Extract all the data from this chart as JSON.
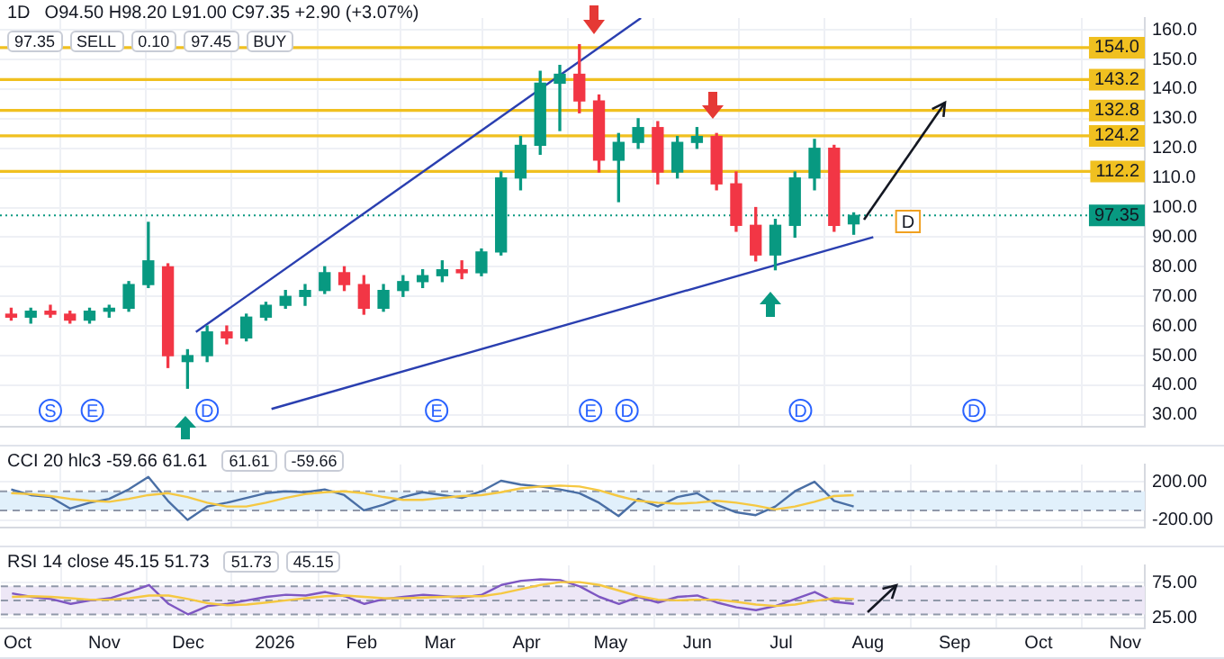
{
  "chart_data": [
    {
      "type": "candlestick",
      "title": "1D",
      "subtitle": "O94.50 H98.20 L91.00 C97.35 +2.90 (+3.07%)",
      "x": [
        "2025-09-29",
        "2025-10-06",
        "2025-10-13",
        "2025-10-20",
        "2025-10-27",
        "2025-11-03",
        "2025-11-10",
        "2025-11-17",
        "2025-11-24",
        "2025-12-01",
        "2025-12-08",
        "2025-12-15",
        "2025-12-22",
        "2025-12-29",
        "2026-01-05",
        "2026-01-12",
        "2026-01-19",
        "2026-01-26",
        "2026-02-02",
        "2026-02-09",
        "2026-02-16",
        "2026-02-23",
        "2026-03-02",
        "2026-03-09",
        "2026-03-16",
        "2026-03-23",
        "2026-03-30",
        "2026-04-06",
        "2026-04-13",
        "2026-04-20",
        "2026-04-27",
        "2026-05-04",
        "2026-05-11",
        "2026-05-18",
        "2026-05-25",
        "2026-06-01",
        "2026-06-08",
        "2026-06-15",
        "2026-06-22",
        "2026-06-29",
        "2026-07-06",
        "2026-07-13",
        "2026-07-20",
        "2026-07-27"
      ],
      "ohlc": [
        [
          64,
          66,
          62,
          63
        ],
        [
          63,
          66,
          61,
          65
        ],
        [
          65,
          67,
          63,
          64
        ],
        [
          64,
          65,
          61,
          62
        ],
        [
          62,
          66,
          61,
          65
        ],
        [
          65,
          67,
          63,
          66
        ],
        [
          66,
          75,
          65,
          74
        ],
        [
          74,
          95,
          73,
          82
        ],
        [
          80,
          81,
          46,
          50
        ],
        [
          48,
          52,
          39,
          50
        ],
        [
          50,
          60,
          48,
          58
        ],
        [
          58,
          60,
          54,
          56
        ],
        [
          56,
          64,
          55,
          63
        ],
        [
          63,
          68,
          62,
          67
        ],
        [
          67,
          72,
          66,
          70
        ],
        [
          70,
          74,
          67,
          72
        ],
        [
          72,
          80,
          71,
          78
        ],
        [
          78,
          80,
          72,
          74
        ],
        [
          74,
          77,
          64,
          66
        ],
        [
          66,
          74,
          65,
          72
        ],
        [
          72,
          77,
          70,
          75
        ],
        [
          75,
          79,
          73,
          77
        ],
        [
          77,
          82,
          75,
          79
        ],
        [
          79,
          82,
          76,
          78
        ],
        [
          78,
          86,
          77,
          85
        ],
        [
          85,
          112,
          84,
          110
        ],
        [
          110,
          124,
          106,
          121
        ],
        [
          121,
          146,
          118,
          142
        ],
        [
          142,
          148,
          126,
          145
        ],
        [
          145,
          155,
          132,
          136
        ],
        [
          136,
          138,
          112,
          116
        ],
        [
          116,
          125,
          102,
          122
        ],
        [
          122,
          130,
          120,
          127
        ],
        [
          127,
          129,
          108,
          112
        ],
        [
          112,
          124,
          110,
          122
        ],
        [
          122,
          127,
          120,
          124
        ],
        [
          124,
          125,
          106,
          108
        ],
        [
          108,
          112,
          92,
          94
        ],
        [
          94,
          100,
          82,
          84
        ],
        [
          84,
          96,
          79,
          94
        ],
        [
          94,
          112,
          90,
          110
        ],
        [
          110,
          123,
          106,
          120
        ],
        [
          120,
          121,
          92,
          94
        ],
        [
          94.5,
          98.2,
          91,
          97.35
        ]
      ],
      "colors": [
        "#f23645",
        "#089981",
        "#f23645",
        "#f23645",
        "#089981",
        "#089981",
        "#089981",
        "#089981",
        "#f23645",
        "#089981",
        "#089981",
        "#f23645",
        "#089981",
        "#089981",
        "#089981",
        "#089981",
        "#089981",
        "#f23645",
        "#f23645",
        "#089981",
        "#089981",
        "#089981",
        "#089981",
        "#f23645",
        "#089981",
        "#089981",
        "#089981",
        "#089981",
        "#089981",
        "#f23645",
        "#f23645",
        "#089981",
        "#089981",
        "#f23645",
        "#089981",
        "#089981",
        "#f23645",
        "#f23645",
        "#f23645",
        "#089981",
        "#089981",
        "#089981",
        "#f23645",
        "#089981"
      ],
      "series": [
        {
          "type": "line",
          "color": "#2a3fb0",
          "x": [
            "2025-12-04",
            "2026-05-12"
          ],
          "values": [
            58,
            164
          ]
        },
        {
          "type": "line",
          "color": "#2a3fb0",
          "x": [
            "2025-12-31",
            "2026-08-03"
          ],
          "values": [
            32,
            90
          ]
        }
      ],
      "xlim": [
        "2025-09-25",
        "2026-11-08"
      ],
      "xticks": [
        "2025-10-01",
        "2025-11-01",
        "2025-12-01",
        "2026-01-01",
        "2026-02-01",
        "2026-03-01",
        "2026-04-01",
        "2026-05-01",
        "2026-06-01",
        "2026-07-01",
        "2026-08-01",
        "2026-09-01",
        "2026-10-01",
        "2026-11-01"
      ],
      "ylim": [
        26,
        164
      ],
      "yticks": [
        {
          "value": 30,
          "label": "30.00"
        },
        {
          "value": 40,
          "label": "40.00"
        },
        {
          "value": 50,
          "label": "50.00"
        },
        {
          "value": 60,
          "label": "60.00"
        },
        {
          "value": 70,
          "label": "70.00"
        },
        {
          "value": 80,
          "label": "80.00"
        },
        {
          "value": 90,
          "label": "90.00"
        },
        {
          "value": 100,
          "label": "100.0"
        },
        {
          "value": 110,
          "label": "110.0"
        },
        {
          "value": 120,
          "label": "120.0"
        },
        {
          "value": 130,
          "label": "130.0"
        },
        {
          "value": 140,
          "label": "140.0"
        },
        {
          "value": 150,
          "label": "150.0"
        },
        {
          "value": 160,
          "label": "160.0"
        }
      ],
      "tick_labels": "y",
      "grid": true,
      "ref_lines": [
        {
          "axis": "y",
          "value": 154,
          "label": "154.0",
          "color": "#f0c020"
        },
        {
          "axis": "y",
          "value": 143.2,
          "label": "143.2",
          "color": "#f0c020"
        },
        {
          "axis": "y",
          "value": 132.8,
          "label": "132.8",
          "color": "#f0c020"
        },
        {
          "axis": "y",
          "value": 124.2,
          "label": "124.2",
          "color": "#f0c020"
        },
        {
          "axis": "y",
          "value": 112.2,
          "label": "112.2",
          "color": "#f0c020"
        },
        {
          "axis": "y",
          "value": 97.35,
          "label": "97.35",
          "color": "#089981",
          "line_style": "dotted"
        }
      ],
      "annotations": [
        "97.35",
        "SELL",
        "0.10",
        "97.45",
        "BUY",
        {
          "text": "S",
          "x": "2025-10-13"
        },
        {
          "text": "E",
          "x": "2025-10-28"
        },
        {
          "text": "D",
          "x": "2025-12-08"
        },
        {
          "text": "E",
          "x": "2026-02-28"
        },
        {
          "text": "E",
          "x": "2026-04-24"
        },
        {
          "text": "D",
          "x": "2026-05-07"
        },
        {
          "text": "D",
          "x": "2026-07-08"
        },
        {
          "text": "D",
          "x": "2026-09-08"
        },
        {
          "text": "D",
          "x": "2026-08-06",
          "y": 95.3
        }
      ]
    },
    {
      "type": "line",
      "title": "CCI 20 hlc3 -59.66 61.61",
      "x": [
        "2025-09-29",
        "2025-10-06",
        "2025-10-13",
        "2025-10-20",
        "2025-10-27",
        "2025-11-03",
        "2025-11-10",
        "2025-11-17",
        "2025-11-24",
        "2025-12-01",
        "2025-12-08",
        "2025-12-15",
        "2025-12-22",
        "2025-12-29",
        "2026-01-05",
        "2026-01-12",
        "2026-01-19",
        "2026-01-26",
        "2026-02-02",
        "2026-02-09",
        "2026-02-16",
        "2026-02-23",
        "2026-03-02",
        "2026-03-09",
        "2026-03-16",
        "2026-03-23",
        "2026-03-30",
        "2026-04-06",
        "2026-04-13",
        "2026-04-20",
        "2026-04-27",
        "2026-05-04",
        "2026-05-11",
        "2026-05-18",
        "2026-05-25",
        "2026-06-01",
        "2026-06-08",
        "2026-06-15",
        "2026-06-22",
        "2026-06-29",
        "2026-07-06",
        "2026-07-13",
        "2026-07-20",
        "2026-07-27"
      ],
      "series": [
        {
          "color": "#f5c842",
          "values": [
            80,
            70,
            50,
            20,
            0,
            -10,
            20,
            60,
            80,
            40,
            -20,
            -60,
            -60,
            -20,
            30,
            70,
            90,
            100,
            80,
            40,
            10,
            10,
            30,
            50,
            60,
            90,
            130,
            150,
            160,
            150,
            110,
            50,
            0,
            -20,
            -30,
            -20,
            0,
            -20,
            -50,
            -90,
            -60,
            -10,
            50,
            60
          ]
        },
        {
          "color": "#4a6fa5",
          "values": [
            120,
            60,
            40,
            -80,
            -20,
            20,
            120,
            250,
            0,
            -200,
            -60,
            -20,
            30,
            80,
            100,
            90,
            120,
            60,
            -100,
            -40,
            40,
            90,
            60,
            30,
            100,
            210,
            170,
            150,
            120,
            80,
            -20,
            -160,
            20,
            -60,
            40,
            80,
            -40,
            -120,
            -150,
            -60,
            100,
            200,
            0,
            -60
          ]
        }
      ],
      "xlim": [
        "2025-09-25",
        "2026-11-08"
      ],
      "xticks": [
        "2025-10-01",
        "2025-11-01",
        "2025-12-01",
        "2026-01-01",
        "2026-02-01",
        "2026-03-01",
        "2026-04-01",
        "2026-05-01",
        "2026-06-01",
        "2026-07-01",
        "2026-08-01",
        "2026-09-01",
        "2026-10-01",
        "2026-11-01"
      ],
      "ylim": [
        -280,
        380
      ],
      "yticks": [
        {
          "value": -200,
          "label": "-200.00"
        },
        {
          "value": 200,
          "label": "200.00"
        }
      ],
      "tick_labels": "y",
      "grid": true,
      "bands": [
        {
          "axis": "y",
          "from": -100,
          "to": 100,
          "color": "#e1f0fb"
        }
      ],
      "ref_lines": [
        {
          "axis": "y",
          "value": 100,
          "color": "#9098a9",
          "line_style": "dashed"
        },
        {
          "axis": "y",
          "value": -100,
          "color": "#9098a9",
          "line_style": "dashed"
        }
      ],
      "annotations": [
        "61.61",
        "-59.66"
      ]
    },
    {
      "type": "line",
      "title": "RSI 14 close 45.15 51.73",
      "x": [
        "2025-09-29",
        "2025-10-06",
        "2025-10-13",
        "2025-10-20",
        "2025-10-27",
        "2025-11-03",
        "2025-11-10",
        "2025-11-17",
        "2025-11-24",
        "2025-12-01",
        "2025-12-08",
        "2025-12-15",
        "2025-12-22",
        "2025-12-29",
        "2026-01-05",
        "2026-01-12",
        "2026-01-19",
        "2026-01-26",
        "2026-02-02",
        "2026-02-09",
        "2026-02-16",
        "2026-02-23",
        "2026-03-02",
        "2026-03-09",
        "2026-03-16",
        "2026-03-23",
        "2026-03-30",
        "2026-04-06",
        "2026-04-13",
        "2026-04-20",
        "2026-04-27",
        "2026-05-04",
        "2026-05-11",
        "2026-05-18",
        "2026-05-25",
        "2026-06-01",
        "2026-06-08",
        "2026-06-15",
        "2026-06-22",
        "2026-06-29",
        "2026-07-06",
        "2026-07-13",
        "2026-07-20",
        "2026-07-27"
      ],
      "series": [
        {
          "color": "#f5c842",
          "values": [
            55,
            56,
            55,
            53,
            51,
            51,
            53,
            57,
            57,
            52,
            46,
            43,
            44,
            47,
            50,
            53,
            56,
            57,
            55,
            53,
            53,
            54,
            55,
            56,
            56,
            60,
            66,
            72,
            76,
            76,
            72,
            64,
            56,
            51,
            50,
            51,
            51,
            48,
            44,
            42,
            44,
            49,
            53,
            52
          ]
        },
        {
          "color": "#7e57c2",
          "values": [
            60,
            55,
            52,
            45,
            50,
            53,
            62,
            72,
            45,
            30,
            42,
            45,
            50,
            55,
            58,
            57,
            62,
            56,
            45,
            52,
            55,
            58,
            56,
            54,
            58,
            72,
            78,
            80,
            79,
            70,
            55,
            45,
            55,
            47,
            55,
            57,
            47,
            40,
            36,
            42,
            52,
            62,
            48,
            45
          ]
        }
      ],
      "xlim": [
        "2025-09-25",
        "2026-11-08"
      ],
      "xticks": [
        {
          "value": "2025-10-01",
          "label": "Oct"
        },
        {
          "value": "2025-11-01",
          "label": "Nov"
        },
        {
          "value": "2025-12-01",
          "label": "Dec"
        },
        {
          "value": "2026-01-01",
          "label": "2026"
        },
        {
          "value": "2026-02-01",
          "label": "Feb"
        },
        {
          "value": "2026-03-01",
          "label": "Mar"
        },
        {
          "value": "2026-04-01",
          "label": "Apr"
        },
        {
          "value": "2026-05-01",
          "label": "May"
        },
        {
          "value": "2026-06-01",
          "label": "Jun"
        },
        {
          "value": "2026-07-01",
          "label": "Jul"
        },
        {
          "value": "2026-08-01",
          "label": "Aug"
        },
        {
          "value": "2026-09-01",
          "label": "Sep"
        },
        {
          "value": "2026-10-01",
          "label": "Oct"
        },
        {
          "value": "2026-11-01",
          "label": "Nov"
        }
      ],
      "ylim": [
        10,
        100
      ],
      "yticks": [
        {
          "value": 25,
          "label": "25.00"
        },
        {
          "value": 75,
          "label": "75.00"
        }
      ],
      "grid": true,
      "bands": [
        {
          "axis": "y",
          "from": 30,
          "to": 70,
          "color": "#ede7f6"
        }
      ],
      "ref_lines": [
        {
          "axis": "y",
          "value": 70,
          "color": "#9098a9",
          "line_style": "dashed"
        },
        {
          "axis": "y",
          "value": 50,
          "color": "#9098a9",
          "line_style": "dashed"
        },
        {
          "axis": "y",
          "value": 30,
          "color": "#9098a9",
          "line_style": "dashed"
        }
      ],
      "annotations": [
        "51.73",
        "45.15"
      ]
    }
  ]
}
